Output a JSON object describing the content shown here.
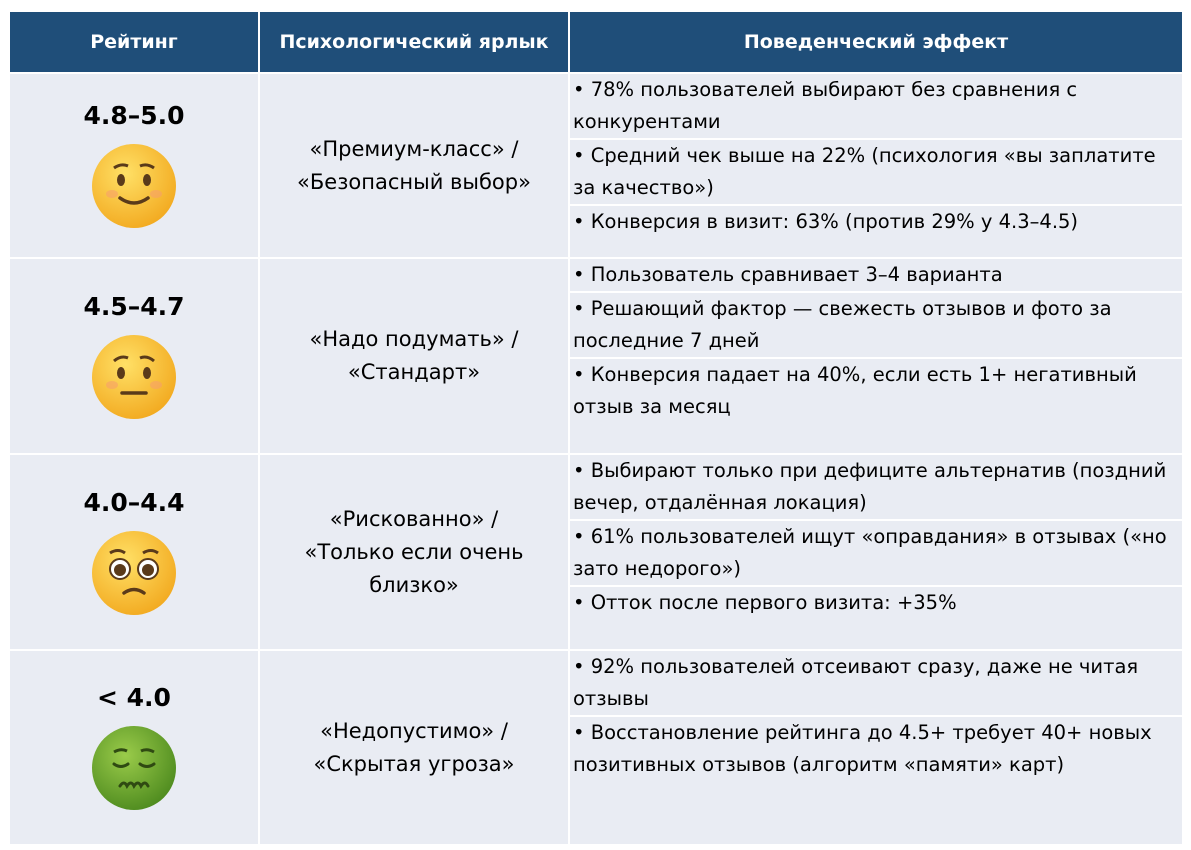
{
  "table": {
    "header": [
      "Рейтинг",
      "Психологический ярлык",
      "Поведенческий эффект"
    ],
    "rows": [
      {
        "rating": "4.8–5.0",
        "label": [
          "«Премиум-класс» /",
          "«Безопасный выбор»"
        ],
        "effects": [
          "• 78% пользователей выбирают без сравнения с конкурентами",
          "• Средний чек выше на 22% (психология «вы заплатите за качество»)",
          "• Конверсия в визит: 63% (против 29% у 4.3–4.5)"
        ]
      },
      {
        "rating": "4.5–4.7",
        "label": [
          "«Надо подумать» /",
          "«Стандарт»"
        ],
        "effects": [
          "• Пользователь сравнивает 3–4 варианта",
          "• Решающий фактор — свежесть отзывов и фото за последние 7 дней",
          "• Конверсия падает на 40%, если есть 1+ негативный отзыв за месяц"
        ]
      },
      {
        "rating": "4.0–4.4",
        "label": [
          "«Рискованно» /",
          "«Только если очень",
          "близко»"
        ],
        "effects": [
          "• Выбирают только при дефиците альтернатив (поздний вечер, отдалённая локация)",
          "• 61% пользователей ищут «оправдания» в отзывах («но зато недорого»)",
          "• Отток после первого визита: +35%"
        ]
      },
      {
        "rating": "< 4.0",
        "label": [
          "«Недопустимо» /",
          "«Скрытая угроза»"
        ],
        "effects": [
          "• 92% пользователей отсеивают сразу, даже не читая отзывы",
          "• Восстановление рейтинга до 4.5+ требует 40+ новых позитивных отзывов (алгоритм «памяти» карт)"
        ]
      }
    ]
  }
}
